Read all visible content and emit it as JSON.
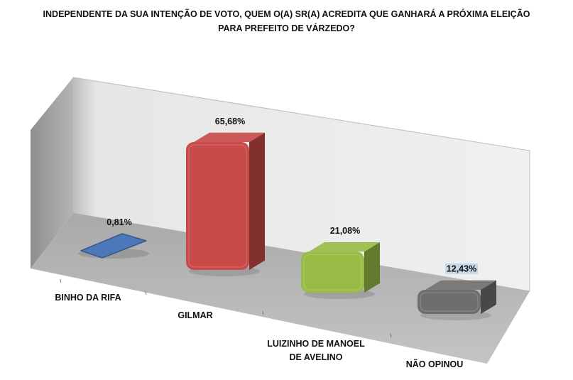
{
  "chart_data": {
    "type": "bar",
    "title_lines": [
      "INDEPENDENTE DA SUA INTENÇÃO DE VOTO, QUEM O(A) SR(A) ACREDITA QUE GANHARÁ A PRÓXIMA ELEIÇÃO",
      "PARA PREFEITO DE VÁRZEDO?"
    ],
    "categories": [
      "BINHO DA RIFA",
      "GILMAR",
      "LUIZINHO DE MANOEL DE AVELINO",
      "NÃO OPINOU"
    ],
    "category_lines": [
      [
        "BINHO DA RIFA"
      ],
      [
        "GILMAR"
      ],
      [
        "LUIZINHO DE MANOEL",
        "DE AVELINO"
      ],
      [
        "NÃO OPINOU"
      ]
    ],
    "values": [
      0.81,
      65.68,
      21.08,
      12.43
    ],
    "value_labels": [
      "0,81%",
      "65,68%",
      "21,08%",
      "12,43%"
    ],
    "colors": [
      "#4a78b8",
      "#c84a48",
      "#98bb45",
      "#6e6e6e"
    ],
    "ylim": [
      0,
      100
    ],
    "grid": false,
    "legend": "none"
  }
}
